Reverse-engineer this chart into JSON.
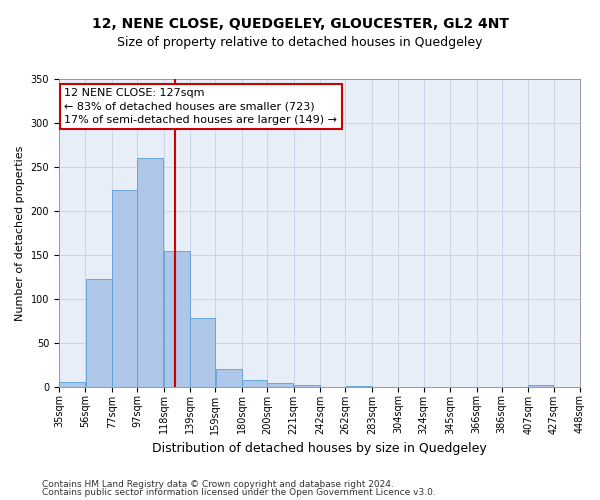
{
  "title": "12, NENE CLOSE, QUEDGELEY, GLOUCESTER, GL2 4NT",
  "subtitle": "Size of property relative to detached houses in Quedgeley",
  "xlabel": "Distribution of detached houses by size in Quedgeley",
  "ylabel": "Number of detached properties",
  "bin_edges": [
    35,
    56,
    77,
    97,
    118,
    139,
    159,
    180,
    200,
    221,
    242,
    262,
    283,
    304,
    324,
    345,
    366,
    386,
    407,
    427,
    448
  ],
  "bin_labels": [
    "35sqm",
    "56sqm",
    "77sqm",
    "97sqm",
    "118sqm",
    "139sqm",
    "159sqm",
    "180sqm",
    "200sqm",
    "221sqm",
    "242sqm",
    "262sqm",
    "283sqm",
    "304sqm",
    "324sqm",
    "345sqm",
    "366sqm",
    "386sqm",
    "407sqm",
    "427sqm",
    "448sqm"
  ],
  "values": [
    5,
    122,
    224,
    260,
    154,
    78,
    20,
    8,
    4,
    2,
    0,
    1,
    0,
    0,
    0,
    0,
    0,
    0,
    2,
    0
  ],
  "bar_color": "#aec6e8",
  "bar_edge_color": "#5a9fd4",
  "grid_color": "#c8d4e8",
  "bg_color": "#e8eef8",
  "vline_x": 127,
  "vline_color": "#cc0000",
  "annotation_line1": "12 NENE CLOSE: 127sqm",
  "annotation_line2": "← 83% of detached houses are smaller (723)",
  "annotation_line3": "17% of semi-detached houses are larger (149) →",
  "annotation_box_color": "#ffffff",
  "annotation_box_edge_color": "#cc0000",
  "ylim": [
    0,
    350
  ],
  "yticks": [
    0,
    50,
    100,
    150,
    200,
    250,
    300,
    350
  ],
  "footer_line1": "Contains HM Land Registry data © Crown copyright and database right 2024.",
  "footer_line2": "Contains public sector information licensed under the Open Government Licence v3.0.",
  "title_fontsize": 10,
  "subtitle_fontsize": 9,
  "xlabel_fontsize": 9,
  "ylabel_fontsize": 8,
  "tick_fontsize": 7,
  "footer_fontsize": 6.5,
  "annotation_fontsize": 8
}
